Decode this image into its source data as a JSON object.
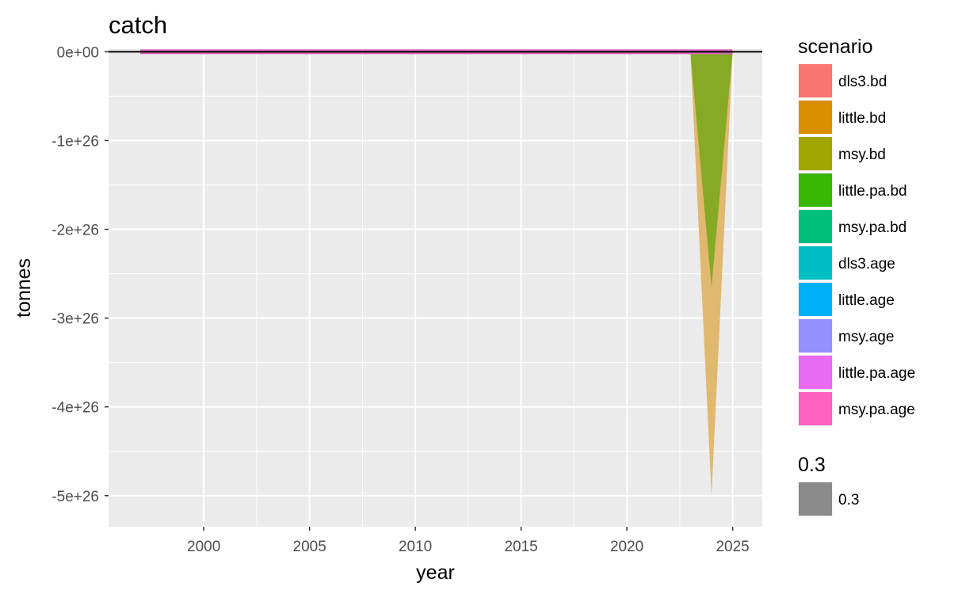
{
  "chart_data": {
    "type": "area",
    "title": "catch",
    "xlabel": "year",
    "ylabel": "tonnes",
    "xlim": [
      1995.5,
      2026.4
    ],
    "ylim": [
      -5.35e+26,
      3e+24
    ],
    "x_ticks": [
      2000,
      2005,
      2010,
      2015,
      2020,
      2025
    ],
    "x_tick_labels": [
      "2000",
      "2005",
      "2010",
      "2015",
      "2020",
      "2025"
    ],
    "y_ticks": [
      0,
      -1e+26,
      -2e+26,
      -3e+26,
      -4e+26,
      -5e+26
    ],
    "y_tick_labels": [
      "0e+00",
      "-1e+26",
      "-2e+26",
      "-3e+26",
      "-4e+26",
      "-5e+26"
    ],
    "grid": true,
    "legend_position": "right",
    "hline_y": 0,
    "baseline_band": {
      "x_start": 1997,
      "x_end": 2025,
      "color": "#d966b8"
    },
    "series": [
      {
        "name": "little.bd",
        "color": "#E0B86E",
        "x": [
          2023,
          2024,
          2025
        ],
        "y": [
          0,
          -5e+26,
          0
        ]
      },
      {
        "name": "msy.bd",
        "color": "#86A926",
        "x": [
          2023,
          2024,
          2025
        ],
        "y": [
          0,
          -2.65e+26,
          0
        ]
      }
    ],
    "legends": [
      {
        "title": "scenario",
        "items": [
          {
            "label": "dls3.bd",
            "color": "#F8766D"
          },
          {
            "label": "little.bd",
            "color": "#D89000"
          },
          {
            "label": "msy.bd",
            "color": "#A3A500"
          },
          {
            "label": "little.pa.bd",
            "color": "#39B600"
          },
          {
            "label": "msy.pa.bd",
            "color": "#00BF7D"
          },
          {
            "label": "dls3.age",
            "color": "#00BFC4"
          },
          {
            "label": "little.age",
            "color": "#00B0F6"
          },
          {
            "label": "msy.age",
            "color": "#9590FF"
          },
          {
            "label": "little.pa.age",
            "color": "#E76BF3"
          },
          {
            "label": "msy.pa.age",
            "color": "#FF62BC"
          }
        ]
      },
      {
        "title": "0.3",
        "items": [
          {
            "label": "0.3",
            "color": "#8a8a8a"
          }
        ]
      }
    ]
  }
}
